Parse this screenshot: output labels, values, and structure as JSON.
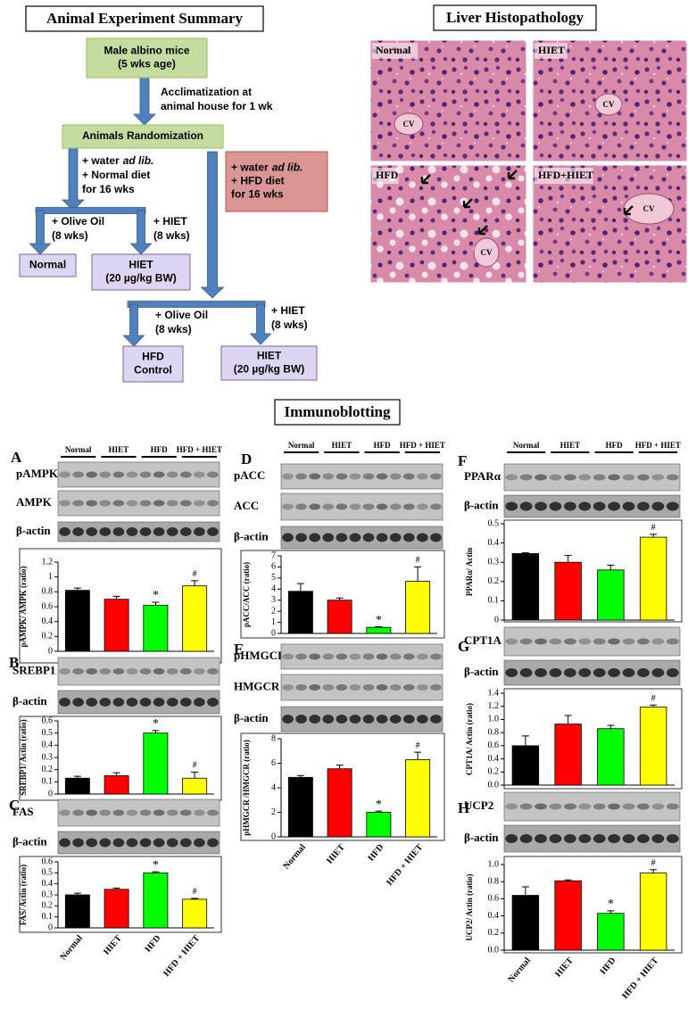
{
  "flowchart": {
    "title": "Animal Experiment Summary",
    "boxes": [
      {
        "lines": [
          "Male albino mice",
          "(5 wks age)"
        ]
      },
      {
        "lines": [
          "Animals Randomization"
        ]
      },
      {
        "lines": [
          [
            "+ water",
            "ad lib."
          ],
          "+ HFD diet",
          "for 16 wks"
        ]
      },
      {
        "lines": [
          "Normal"
        ]
      },
      {
        "lines": [
          "HIET",
          "(20 µg/kg BW)"
        ]
      },
      {
        "lines": [
          "HFD",
          "Control"
        ]
      },
      {
        "lines": [
          "HIET",
          "(20 µg/kg BW)"
        ]
      }
    ],
    "notes": [
      {
        "lines": [
          "Acclimatization at",
          "animal house for 1 wk"
        ]
      },
      {
        "lines": [
          [
            "+ water",
            "ad lib."
          ],
          "+ Normal diet",
          "for 16 wks"
        ]
      },
      {
        "lines": [
          "+ Olive Oil",
          "(8 wks)"
        ]
      },
      {
        "lines": [
          "+ HIET",
          "(8 wks)"
        ]
      },
      {
        "lines": [
          "+ Olive Oil",
          "(8 wks)"
        ]
      },
      {
        "lines": [
          "+ HIET",
          "(8 wks)"
        ]
      }
    ]
  },
  "histology": {
    "title": "Liver Histopathology",
    "panels": [
      "Normal",
      "HIET",
      "HFD",
      "HFD+HIET"
    ],
    "cv_label": "CV"
  },
  "immunoblotting": {
    "title": "Immunoblotting"
  },
  "chart_data": [
    {
      "type": "bar",
      "panel": "A",
      "blot_header": [
        "Normal",
        "HIET",
        "HFD",
        "HFD + HIET"
      ],
      "blots": [
        "pAMPK",
        "AMPK",
        "β-actin"
      ],
      "ylabel": "pAMPK/ AMPK (ratio)",
      "values": [
        0.82,
        0.7,
        0.62,
        0.88
      ],
      "errors": [
        0.03,
        0.04,
        0.04,
        0.07
      ],
      "markers": [
        null,
        null,
        "*",
        "#"
      ],
      "colors": [
        "#000000",
        "#ff0000",
        "#00ff00",
        "#ffff00"
      ],
      "ylim": [
        0,
        1.2
      ],
      "yticks": [
        0,
        0.2,
        0.4,
        0.6,
        0.8,
        1,
        1.2
      ]
    },
    {
      "type": "bar",
      "panel": "B",
      "blots": [
        "SREBP1",
        "β-actin"
      ],
      "ylabel": "SREBP1/ Actin (ratio)",
      "values": [
        0.13,
        0.15,
        0.5,
        0.13
      ],
      "errors": [
        0.015,
        0.025,
        0.02,
        0.05
      ],
      "markers": [
        null,
        null,
        "*",
        "#"
      ],
      "colors": [
        "#000000",
        "#ff0000",
        "#00ff00",
        "#ffff00"
      ],
      "ylim": [
        0,
        0.6
      ],
      "yticks": [
        0,
        0.1,
        0.2,
        0.3,
        0.4,
        0.5,
        0.6
      ]
    },
    {
      "type": "bar",
      "panel": "C",
      "blots": [
        "FAS",
        "β-actin"
      ],
      "ylabel": "FAS/ Actin (ratio)",
      "categories": [
        "Normal",
        "HIET",
        "HFD",
        "HFD + HIET"
      ],
      "values": [
        0.3,
        0.35,
        0.5,
        0.26
      ],
      "errors": [
        0.015,
        0.012,
        0.01,
        0.008
      ],
      "markers": [
        null,
        null,
        "*",
        "#"
      ],
      "colors": [
        "#000000",
        "#ff0000",
        "#00ff00",
        "#ffff00"
      ],
      "ylim": [
        0,
        0.6
      ],
      "yticks": [
        0,
        0.1,
        0.2,
        0.3,
        0.4,
        0.5,
        0.6
      ]
    },
    {
      "type": "bar",
      "panel": "D",
      "blot_header": [
        "Normal",
        "HIET",
        "HFD",
        "HFD + HIET"
      ],
      "blots": [
        "pACC",
        "ACC",
        "β-actin"
      ],
      "ylabel": "pACC/ACC (ratio)",
      "values": [
        3.8,
        3.0,
        0.55,
        4.7
      ],
      "errors": [
        0.7,
        0.2,
        0.05,
        1.3
      ],
      "markers": [
        null,
        null,
        "*",
        "#"
      ],
      "colors": [
        "#000000",
        "#ff0000",
        "#00ff00",
        "#ffff00"
      ],
      "ylim": [
        0,
        7
      ],
      "yticks": [
        0,
        1,
        2,
        3,
        4,
        5,
        6,
        7
      ]
    },
    {
      "type": "bar",
      "panel": "E",
      "blots": [
        "pHMGCR",
        "HMGCR",
        "β-actin"
      ],
      "ylabel": "pHMGCR /HMGCR (ratio)",
      "categories": [
        "Normal",
        "HIET",
        "HFD",
        "HFD + HIET"
      ],
      "values": [
        4.85,
        5.55,
        2.0,
        6.3
      ],
      "errors": [
        0.15,
        0.3,
        0.1,
        0.6
      ],
      "markers": [
        null,
        null,
        "*",
        "#"
      ],
      "colors": [
        "#000000",
        "#ff0000",
        "#00ff00",
        "#ffff00"
      ],
      "ylim": [
        0,
        8
      ],
      "yticks": [
        0,
        2,
        4,
        6,
        8
      ]
    },
    {
      "type": "bar",
      "panel": "F",
      "blot_header": [
        "Normal",
        "HIET",
        "HFD",
        "HFD + HIET"
      ],
      "blots": [
        "PPARα",
        "β-actin"
      ],
      "ylabel": "PPARα/ Actin",
      "values": [
        0.345,
        0.3,
        0.26,
        0.43
      ],
      "errors": [
        0.004,
        0.035,
        0.025,
        0.015
      ],
      "markers": [
        null,
        null,
        null,
        "#"
      ],
      "colors": [
        "#000000",
        "#ff0000",
        "#00ff00",
        "#ffff00"
      ],
      "ylim": [
        0,
        0.5
      ],
      "yticks": [
        0,
        0.1,
        0.2,
        0.3,
        0.4,
        0.5
      ]
    },
    {
      "type": "bar",
      "panel": "G",
      "blots": [
        "CPT1A",
        "β-actin"
      ],
      "ylabel": "CPT1A/ Actin (ratio)",
      "values": [
        0.6,
        0.93,
        0.86,
        1.19
      ],
      "errors": [
        0.15,
        0.13,
        0.05,
        0.03
      ],
      "markers": [
        null,
        null,
        null,
        "#"
      ],
      "colors": [
        "#000000",
        "#ff0000",
        "#00ff00",
        "#ffff00"
      ],
      "ylim": [
        0,
        1.4
      ],
      "yticks": [
        {
          "value": 0,
          "label": "0.0"
        },
        0.2,
        0.4,
        0.6,
        0.8,
        {
          "value": 1,
          "label": "1.0"
        },
        1.2,
        1.4
      ]
    },
    {
      "type": "bar",
      "panel": "H",
      "blots": [
        "UCP2",
        "β-actin"
      ],
      "ylabel": "UCP2/ Actin (ratio)",
      "categories": [
        "Normal",
        "HIET",
        "HFD",
        "HFD + HIET"
      ],
      "values": [
        0.64,
        0.81,
        0.43,
        0.9
      ],
      "errors": [
        0.1,
        0.01,
        0.03,
        0.04
      ],
      "markers": [
        null,
        null,
        "*",
        "#"
      ],
      "colors": [
        "#000000",
        "#ff0000",
        "#00ff00",
        "#ffff00"
      ],
      "ylim": [
        0,
        1.0
      ],
      "yticks": [
        {
          "value": 0,
          "label": "0.0"
        },
        0.2,
        0.4,
        0.6,
        0.8,
        {
          "value": 1,
          "label": "1.0"
        }
      ]
    }
  ]
}
